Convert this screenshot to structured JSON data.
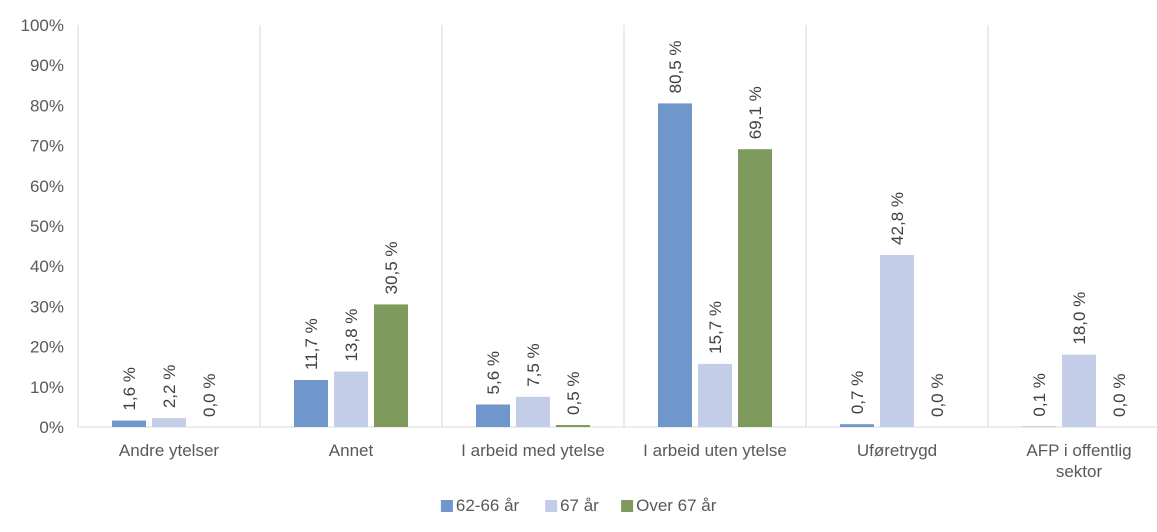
{
  "chart_data": {
    "type": "bar",
    "title": "",
    "xlabel": "",
    "ylabel": "",
    "ylim": [
      0,
      100
    ],
    "y_ticks": [
      "0%",
      "10%",
      "20%",
      "30%",
      "40%",
      "50%",
      "60%",
      "70%",
      "80%",
      "90%",
      "100%"
    ],
    "grid": "vertical category separators",
    "legend_position": "bottom-center",
    "categories": [
      [
        "Andre ytelser"
      ],
      [
        "Annet"
      ],
      [
        "I arbeid med ytelse"
      ],
      [
        "I arbeid uten ytelse"
      ],
      [
        "Uføretrygd"
      ],
      [
        "AFP i offentlig",
        "sektor"
      ]
    ],
    "series": [
      {
        "name": "62-66 år",
        "color": "#6F97CC",
        "values": [
          1.6,
          11.7,
          5.6,
          80.5,
          0.7,
          0.1
        ],
        "labels": [
          "1,6 %",
          "11,7 %",
          "5,6 %",
          "80,5 %",
          "0,7 %",
          "0,1 %"
        ]
      },
      {
        "name": "67 år",
        "color": "#C3CDE8",
        "values": [
          2.2,
          13.8,
          7.5,
          15.7,
          42.8,
          18.0
        ],
        "labels": [
          "2,2 %",
          "13,8 %",
          "7,5 %",
          "15,7 %",
          "42,8 %",
          "18,0 %"
        ]
      },
      {
        "name": "Over 67 år",
        "color": "#7E9A5C",
        "values": [
          0.0,
          30.5,
          0.5,
          69.1,
          0.0,
          0.0
        ],
        "labels": [
          "0,0 %",
          "30,5 %",
          "0,5 %",
          "69,1 %",
          "0,0 %",
          "0,0 %"
        ]
      }
    ]
  }
}
